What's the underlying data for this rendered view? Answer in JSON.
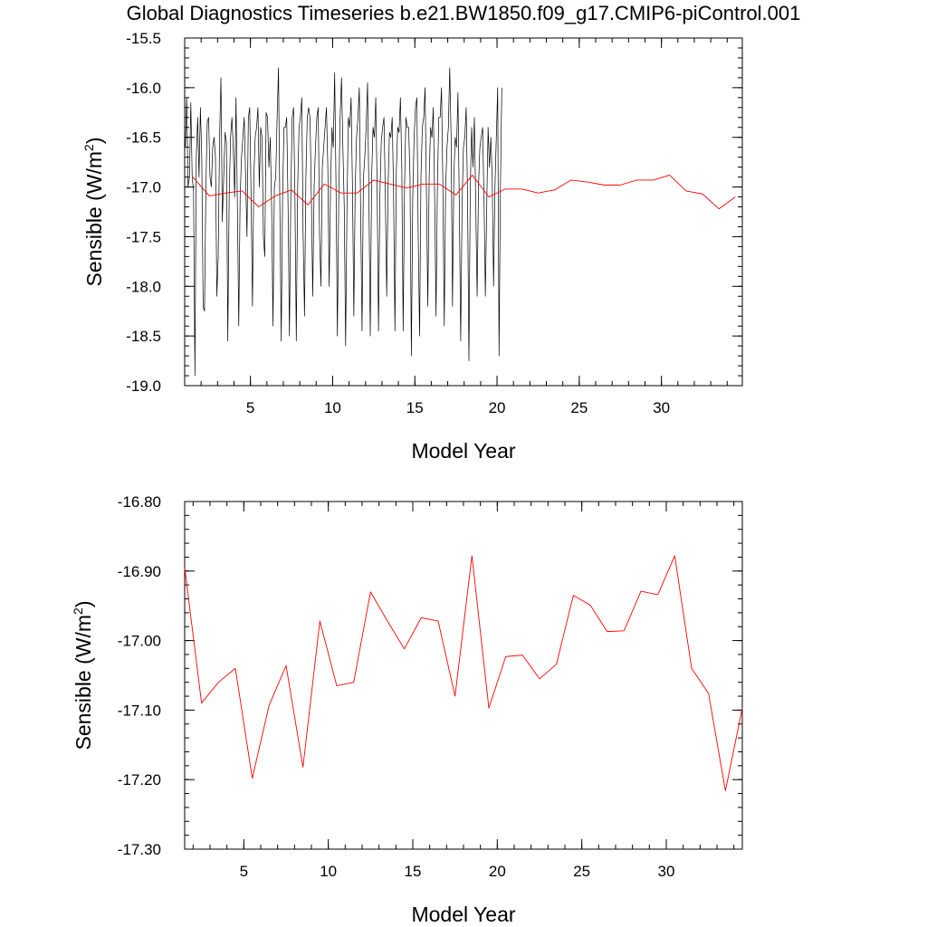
{
  "title": "Global Diagnostics Timeseries b.e21.BW1850.f09_g17.CMIP6-piControl.001",
  "colors": {
    "monthly_line": "#000000",
    "annual_line": "#ff0000",
    "axis": "#000000"
  },
  "chart_data": [
    {
      "type": "line",
      "xlabel": "Model Year",
      "ylabel_main": "Sensible (W/m",
      "ylabel_sup": "2",
      "ylabel_tail": ")",
      "xlim": [
        1.0,
        34.92
      ],
      "ylim": [
        -19.0,
        -15.5
      ],
      "x_ticks": [
        5,
        10,
        15,
        20,
        25,
        30
      ],
      "y_ticks": [
        -19.0,
        -18.5,
        -18.0,
        -17.5,
        -17.0,
        -16.5,
        -16.0,
        -15.5
      ],
      "y_tick_labels": [
        "-19.0",
        "-18.5",
        "-18.0",
        "-17.5",
        "-17.0",
        "-16.5",
        "-16.0",
        "-15.5"
      ],
      "series": [
        {
          "color": "#000000",
          "x_start": 1.04,
          "x_step": 0.08333,
          "values": [
            -16.6,
            -16.1,
            -17.0,
            -16.9,
            -16.15,
            -16.9,
            -17.05,
            -18.9,
            -16.7,
            -16.3,
            -16.9,
            -16.2,
            -16.7,
            -18.2,
            -18.25,
            -17.0,
            -16.35,
            -16.3,
            -16.9,
            -17.0,
            -16.6,
            -16.5,
            -16.7,
            -18.1,
            -17.7,
            -16.5,
            -15.9,
            -17.35,
            -16.9,
            -16.45,
            -16.55,
            -18.55,
            -17.1,
            -16.5,
            -16.3,
            -16.6,
            -17.1,
            -16.1,
            -17.2,
            -18.4,
            -17.1,
            -16.7,
            -16.5,
            -16.3,
            -16.9,
            -17.5,
            -16.3,
            -16.2,
            -17.1,
            -18.2,
            -16.9,
            -16.5,
            -16.4,
            -16.2,
            -17.0,
            -16.4,
            -16.5,
            -17.5,
            -17.7,
            -16.25,
            -16.3,
            -16.8,
            -16.5,
            -17.2,
            -18.4,
            -17.0,
            -16.9,
            -16.3,
            -15.8,
            -17.2,
            -18.55,
            -17.1,
            -16.4,
            -16.4,
            -16.3,
            -17.2,
            -18.5,
            -17.1,
            -16.3,
            -16.2,
            -17.1,
            -18.55,
            -17.0,
            -16.4,
            -16.3,
            -16.1,
            -17.5,
            -18.3,
            -16.9,
            -16.3,
            -16.2,
            -16.3,
            -17.1,
            -18.1,
            -17.0,
            -16.6,
            -16.3,
            -16.2,
            -17.5,
            -18.0,
            -16.8,
            -16.6,
            -16.4,
            -16.2,
            -16.8,
            -18.0,
            -17.0,
            -16.4,
            -16.6,
            -15.85,
            -17.0,
            -18.5,
            -17.1,
            -16.3,
            -15.9,
            -16.6,
            -17.2,
            -18.6,
            -17.2,
            -16.3,
            -16.4,
            -16.1,
            -17.0,
            -18.3,
            -17.0,
            -16.5,
            -16.3,
            -16.0,
            -17.3,
            -18.45,
            -16.9,
            -16.7,
            -16.4,
            -15.95,
            -17.1,
            -18.5,
            -16.9,
            -16.4,
            -16.5,
            -16.1,
            -17.0,
            -18.45,
            -17.1,
            -16.55,
            -16.4,
            -16.3,
            -17.1,
            -18.1,
            -17.0,
            -16.45,
            -16.5,
            -16.3,
            -17.05,
            -18.45,
            -16.85,
            -16.4,
            -16.45,
            -16.1,
            -16.8,
            -18.45,
            -17.0,
            -16.3,
            -16.4,
            -16.4,
            -16.9,
            -18.7,
            -17.1,
            -16.5,
            -16.2,
            -16.1,
            -17.5,
            -18.5,
            -16.9,
            -16.4,
            -16.3,
            -16.0,
            -17.05,
            -18.2,
            -16.9,
            -16.4,
            -16.5,
            -16.2,
            -17.1,
            -18.3,
            -17.0,
            -16.3,
            -16.3,
            -16.0,
            -17.0,
            -18.4,
            -17.0,
            -16.6,
            -16.4,
            -15.8,
            -16.5,
            -18.2,
            -16.9,
            -16.5,
            -16.6,
            -16.05,
            -17.2,
            -18.55,
            -17.2,
            -16.6,
            -16.5,
            -16.2,
            -17.1,
            -18.75,
            -17.0,
            -16.4,
            -16.8,
            -16.3,
            -17.2,
            -18.1,
            -17.0,
            -16.6,
            -16.5,
            -16.4,
            -17.1,
            -18.1,
            -17.2,
            -16.4,
            -16.8,
            -16.5,
            -16.9,
            -18.0,
            -17.0,
            -16.5,
            -16.0,
            -18.7,
            -17.0,
            -16.0
          ]
        },
        {
          "color": "#ff0000",
          "x": [
            1.5,
            2.5,
            3.5,
            4.5,
            5.5,
            6.5,
            7.5,
            8.5,
            9.5,
            10.5,
            11.5,
            12.5,
            13.5,
            14.5,
            15.5,
            16.5,
            17.5,
            18.5,
            19.5,
            20.5,
            21.5,
            22.5,
            23.5,
            24.5,
            25.5,
            26.5,
            27.5,
            28.5,
            29.5,
            30.5,
            31.5,
            32.5,
            33.5,
            34.5
          ],
          "values": [
            -16.9,
            -17.09,
            -17.06,
            -17.04,
            -17.2,
            -17.09,
            -17.03,
            -17.18,
            -16.97,
            -17.06,
            -17.06,
            -16.93,
            -16.97,
            -17.01,
            -16.97,
            -16.97,
            -17.08,
            -16.88,
            -17.1,
            -17.02,
            -17.02,
            -17.06,
            -17.03,
            -16.93,
            -16.95,
            -16.98,
            -16.98,
            -16.93,
            -16.93,
            -16.88,
            -17.04,
            -17.07,
            -17.22,
            -17.1
          ]
        }
      ]
    },
    {
      "type": "line",
      "xlabel": "Model Year",
      "ylabel_main": "Sensible (W/m",
      "ylabel_sup": "2",
      "ylabel_tail": ")",
      "xlim": [
        1.5,
        34.5
      ],
      "ylim": [
        -17.3,
        -16.8
      ],
      "x_ticks": [
        5,
        10,
        15,
        20,
        25,
        30
      ],
      "y_ticks": [
        -17.3,
        -17.2,
        -17.1,
        -17.0,
        -16.9,
        -16.8
      ],
      "y_tick_labels": [
        "-17.30",
        "-17.20",
        "-17.10",
        "-17.00",
        "-16.90",
        "-16.80"
      ],
      "series": [
        {
          "color": "#ff0000",
          "x": [
            1.5,
            2.5,
            3.5,
            4.5,
            5.5,
            6.5,
            7.5,
            8.5,
            9.5,
            10.5,
            11.5,
            12.5,
            13.5,
            14.5,
            15.5,
            16.5,
            17.5,
            18.5,
            19.5,
            20.5,
            21.5,
            22.5,
            23.5,
            24.5,
            25.5,
            26.5,
            27.5,
            28.5,
            29.5,
            30.5,
            31.5,
            32.5,
            33.5,
            34.5
          ],
          "values": [
            -16.895,
            -17.09,
            -17.06,
            -17.04,
            -17.198,
            -17.093,
            -17.036,
            -17.182,
            -16.972,
            -17.065,
            -17.06,
            -16.93,
            -16.972,
            -17.012,
            -16.967,
            -16.972,
            -17.08,
            -16.878,
            -17.097,
            -17.023,
            -17.021,
            -17.055,
            -17.034,
            -16.935,
            -16.949,
            -16.987,
            -16.986,
            -16.929,
            -16.934,
            -16.878,
            -17.04,
            -17.076,
            -17.216,
            -17.097
          ]
        }
      ]
    }
  ]
}
